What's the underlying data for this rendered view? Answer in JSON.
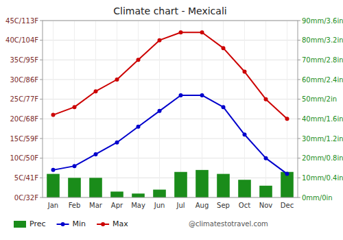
{
  "chart_data": {
    "type": "bar",
    "title": "Climate chart - Mexicali",
    "categories": [
      "Jan",
      "Feb",
      "Mar",
      "Apr",
      "May",
      "Jun",
      "Jul",
      "Aug",
      "Sep",
      "Oct",
      "Nov",
      "Dec"
    ],
    "series": [
      {
        "name": "Prec",
        "type": "bar",
        "axis": "y2",
        "color": "#1a8c1a",
        "values": [
          12,
          10,
          10,
          3,
          2,
          4,
          13,
          14,
          12,
          9,
          6,
          13
        ]
      },
      {
        "name": "Min",
        "type": "line",
        "color": "#0000cc",
        "marker": "circle",
        "line_style": "solid",
        "values": [
          7,
          8,
          11,
          14,
          18,
          22,
          26,
          26,
          23,
          16,
          10,
          6
        ]
      },
      {
        "name": "Max",
        "type": "line",
        "color": "#cc0000",
        "marker": "circle",
        "line_style": "solid",
        "values": [
          21,
          23,
          27,
          30,
          35,
          40,
          42,
          42,
          38,
          32,
          25,
          20
        ]
      }
    ],
    "ylim": [
      0,
      45
    ],
    "yticks": [
      {
        "value": 0,
        "label": "0C/32F"
      },
      {
        "value": 5,
        "label": "5C/41F"
      },
      {
        "value": 10,
        "label": "10C/50F"
      },
      {
        "value": 15,
        "label": "15C/59F"
      },
      {
        "value": 20,
        "label": "20C/68F"
      },
      {
        "value": 25,
        "label": "25C/77F"
      },
      {
        "value": 30,
        "label": "30C/86F"
      },
      {
        "value": 35,
        "label": "35C/95F"
      },
      {
        "value": 40,
        "label": "40C/104F"
      },
      {
        "value": 45,
        "label": "45C/113F"
      }
    ],
    "y2lim": [
      0,
      90
    ],
    "y2ticks": [
      {
        "value": 0,
        "label": "0mm/0in"
      },
      {
        "value": 10,
        "label": "10mm/0.4in"
      },
      {
        "value": 20,
        "label": "20mm/0.8in"
      },
      {
        "value": 30,
        "label": "30mm/1.2in"
      },
      {
        "value": 40,
        "label": "40mm/1.6in"
      },
      {
        "value": 50,
        "label": "50mm/2in"
      },
      {
        "value": 60,
        "label": "60mm/2.4in"
      },
      {
        "value": 70,
        "label": "70mm/2.8in"
      },
      {
        "value": 80,
        "label": "80mm/3.2in"
      },
      {
        "value": 90,
        "label": "90mm/3.6in"
      }
    ],
    "grid": true,
    "legend": "lower left",
    "annotations": [
      "@climatestotravel.com"
    ]
  }
}
